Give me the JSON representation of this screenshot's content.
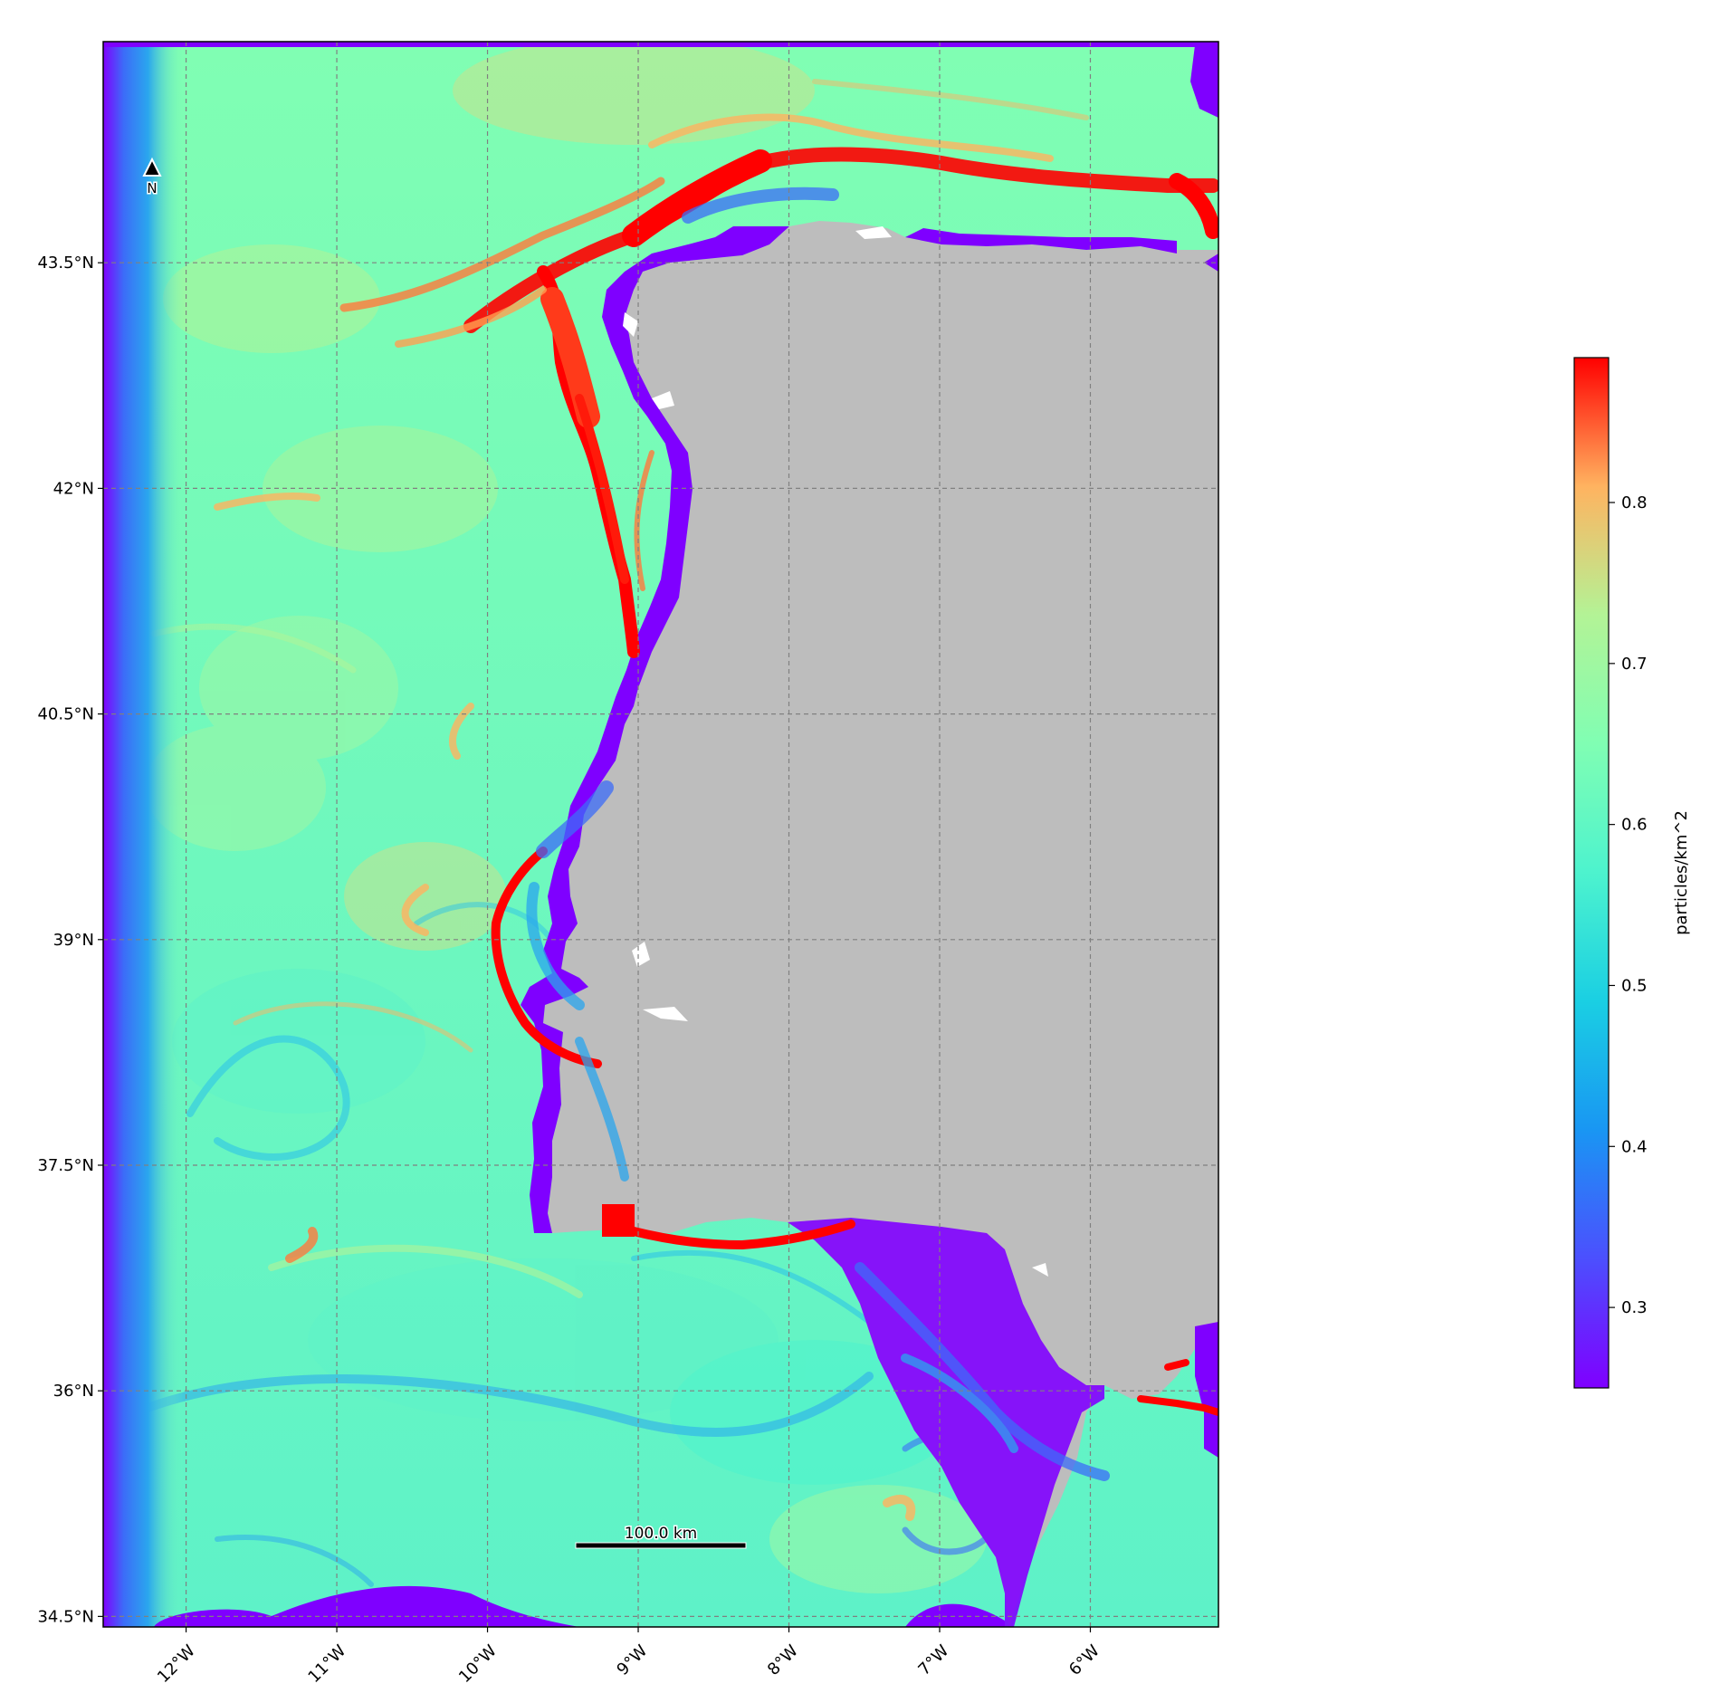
{
  "map": {
    "lon_range": [
      -12.55,
      -5.15
    ],
    "lat_range": [
      34.43,
      44.97
    ],
    "lon_ticks": [
      {
        "value": -12,
        "label": "12°W"
      },
      {
        "value": -11,
        "label": "11°W"
      },
      {
        "value": -10,
        "label": "10°W"
      },
      {
        "value": -9,
        "label": "9°W"
      },
      {
        "value": -8,
        "label": "8°W"
      },
      {
        "value": -7,
        "label": "7°W"
      },
      {
        "value": -6,
        "label": "6°W"
      }
    ],
    "lat_ticks": [
      {
        "value": 43.5,
        "label": "43.5°N"
      },
      {
        "value": 42,
        "label": "42°N"
      },
      {
        "value": 40.5,
        "label": "40.5°N"
      },
      {
        "value": 39,
        "label": "39°N"
      },
      {
        "value": 37.5,
        "label": "37.5°N"
      },
      {
        "value": 36,
        "label": "36°N"
      },
      {
        "value": 34.5,
        "label": "34.5°N"
      }
    ],
    "north_arrow_label": "N",
    "scale_bar_label": "100.0 km",
    "gridlines": "dashed grey",
    "land_color": "#bdbdbd",
    "colormap": "rainbow"
  },
  "colorbar": {
    "label": "particles/km^2",
    "range": [
      0.25,
      0.89
    ],
    "ticks": [
      {
        "value": 0.3,
        "label": "0.3"
      },
      {
        "value": 0.4,
        "label": "0.4"
      },
      {
        "value": 0.5,
        "label": "0.5"
      },
      {
        "value": 0.6,
        "label": "0.6"
      },
      {
        "value": 0.7,
        "label": "0.7"
      },
      {
        "value": 0.8,
        "label": "0.8"
      }
    ]
  }
}
